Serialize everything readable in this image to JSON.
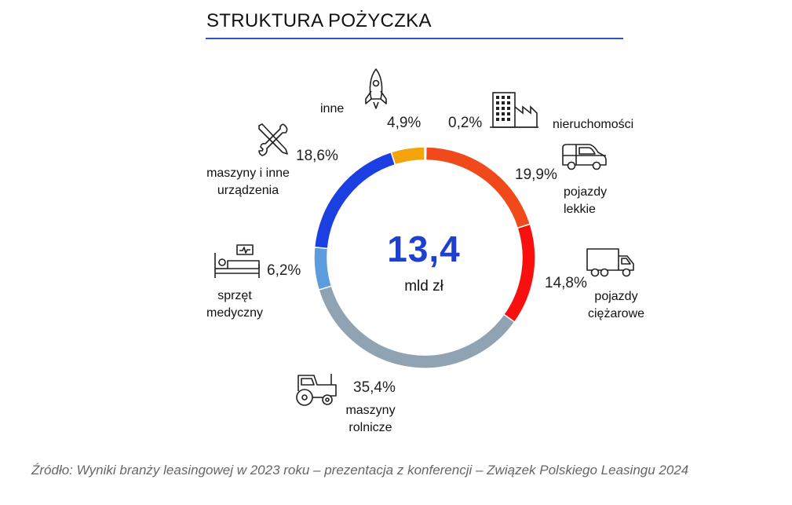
{
  "title": "STRUKTURA POŻYCZKA",
  "center": {
    "value": "13,4",
    "unit": "mld zł"
  },
  "source": "Źródło: Wyniki branży leasingowej w 2023 roku – prezentacja z konferencji – Związek Polskiego Leasingu 2024",
  "chart_data": {
    "type": "pie",
    "variant": "donut",
    "slices": [
      {
        "label": "nieruchomości",
        "value": 0.2,
        "value_label": "0,2%",
        "color": "#e8501a",
        "icon": "office-building-icon"
      },
      {
        "label": "pojazdy lekkie",
        "value": 19.9,
        "value_label": "19,9%",
        "color": "#f04a1c",
        "icon": "van-icon"
      },
      {
        "label": "pojazdy ciężarowe",
        "value": 14.8,
        "value_label": "14,8%",
        "color": "#fa0f0f",
        "icon": "truck-icon"
      },
      {
        "label": "maszyny rolnicze",
        "value": 35.4,
        "value_label": "35,4%",
        "color": "#8fa3b3",
        "icon": "tractor-icon"
      },
      {
        "label": "sprzęt medyczny",
        "value": 6.2,
        "value_label": "6,2%",
        "color": "#5b9bde",
        "icon": "hospital-bed-icon"
      },
      {
        "label": "maszyny i inne urządzenia",
        "value": 18.6,
        "value_label": "18,6%",
        "color": "#1b3fe0",
        "icon": "tools-icon"
      },
      {
        "label": "inne",
        "value": 4.9,
        "value_label": "4,9%",
        "color": "#f5a30a",
        "icon": "rocket-icon"
      }
    ]
  },
  "labels": {
    "nieruchomosci": "nieruchomości",
    "pojazdy_lekkie": [
      "pojazdy",
      "lekkie"
    ],
    "pojazdy_ciezarowe": [
      "pojazdy",
      "ciężarowe"
    ],
    "maszyny_rolnicze": [
      "maszyny",
      "rolnicze"
    ],
    "sprzet_medyczny": [
      "sprzęt",
      "medyczny"
    ],
    "maszyny_inne": [
      "maszyny i inne",
      "urządzenia"
    ],
    "inne": "inne"
  }
}
